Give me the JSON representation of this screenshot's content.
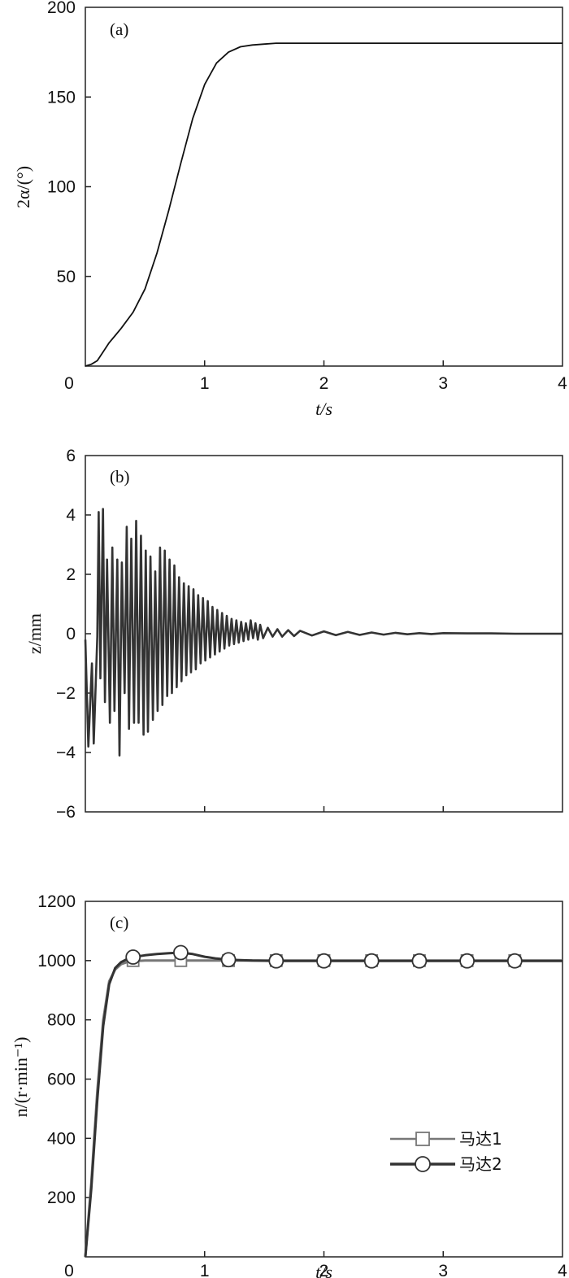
{
  "chart_data": [
    {
      "type": "line",
      "panel": "(a)",
      "ylabel": "2α/(°)",
      "xlabel": "t/s",
      "xlim": [
        0,
        4
      ],
      "ylim": [
        0,
        200
      ],
      "xticks": [
        "0",
        "1",
        "2",
        "3",
        "4"
      ],
      "yticks": [
        "50",
        "100",
        "150",
        "200"
      ],
      "series": [
        {
          "x": [
            0,
            0.05,
            0.1,
            0.15,
            0.2,
            0.25,
            0.3,
            0.4,
            0.5,
            0.6,
            0.7,
            0.8,
            0.9,
            1.0,
            1.1,
            1.2,
            1.3,
            1.4,
            1.5,
            1.6,
            1.8,
            2.0,
            2.5,
            3.0,
            3.5,
            4.0
          ],
          "y": [
            0,
            1,
            3,
            8,
            13,
            17,
            21,
            30,
            43,
            63,
            87,
            113,
            138,
            157,
            169,
            175,
            178,
            179,
            179.5,
            180,
            180,
            180,
            180,
            180,
            180,
            180
          ]
        }
      ]
    },
    {
      "type": "line",
      "panel": "(b)",
      "ylabel": "z/mm",
      "xlim": [
        0,
        4
      ],
      "ylim": [
        -6,
        6
      ],
      "yticks": [
        "−6",
        "−4",
        "−2",
        "0",
        "2",
        "4",
        "6"
      ],
      "series": [
        {
          "x": [
            0,
            0.025,
            0.055,
            0.07,
            0.1,
            0.112,
            0.126,
            0.148,
            0.164,
            0.182,
            0.206,
            0.226,
            0.244,
            0.268,
            0.286,
            0.306,
            0.329,
            0.347,
            0.366,
            0.385,
            0.408,
            0.426,
            0.446,
            0.466,
            0.488,
            0.506,
            0.525,
            0.546,
            0.566,
            0.586,
            0.606,
            0.626,
            0.646,
            0.666,
            0.686,
            0.706,
            0.726,
            0.746,
            0.766,
            0.786,
            0.806,
            0.826,
            0.846,
            0.866,
            0.886,
            0.906,
            0.926,
            0.946,
            0.966,
            0.986,
            1.006,
            1.026,
            1.046,
            1.066,
            1.086,
            1.106,
            1.126,
            1.146,
            1.166,
            1.186,
            1.206,
            1.226,
            1.246,
            1.266,
            1.286,
            1.306,
            1.326,
            1.346,
            1.366,
            1.386,
            1.406,
            1.426,
            1.446,
            1.466,
            1.49,
            1.53,
            1.57,
            1.61,
            1.65,
            1.7,
            1.75,
            1.8,
            1.9,
            2.0,
            2.1,
            2.2,
            2.3,
            2.4,
            2.5,
            2.6,
            2.7,
            2.8,
            2.9,
            3.0,
            3.2,
            3.4,
            3.6,
            3.8,
            4.0
          ],
          "y": [
            -0.2,
            -3.8,
            -1.0,
            -3.7,
            -0.1,
            4.1,
            -1.5,
            4.2,
            -2.3,
            2.5,
            -3.0,
            2.9,
            -2.6,
            2.5,
            -4.1,
            2.4,
            -2.0,
            3.6,
            -3.2,
            3.2,
            -3.0,
            3.8,
            -3.0,
            3.3,
            -3.4,
            2.8,
            -3.3,
            2.6,
            -2.9,
            2.1,
            -2.6,
            2.9,
            -2.4,
            2.8,
            -2.1,
            2.5,
            -2.0,
            2.3,
            -1.8,
            1.9,
            -1.6,
            1.7,
            -1.4,
            1.6,
            -1.3,
            1.5,
            -1.2,
            1.3,
            -1.0,
            1.2,
            -0.9,
            1.1,
            -0.8,
            0.9,
            -0.7,
            0.8,
            -0.6,
            0.7,
            -0.5,
            0.6,
            -0.4,
            0.5,
            -0.35,
            0.45,
            -0.3,
            0.4,
            -0.25,
            0.35,
            -0.2,
            0.45,
            -0.15,
            0.35,
            -0.2,
            0.3,
            -0.15,
            0.2,
            -0.1,
            0.15,
            -0.1,
            0.12,
            -0.08,
            0.1,
            -0.06,
            0.08,
            -0.05,
            0.06,
            -0.04,
            0.04,
            -0.03,
            0.03,
            -0.02,
            0.02,
            -0.01,
            0.02,
            0.01,
            0.01,
            0,
            0,
            0
          ]
        }
      ]
    },
    {
      "type": "line",
      "panel": "(c)",
      "ylabel": "n/(r·min⁻¹)",
      "xlabel": "t/s",
      "xlim": [
        0,
        4
      ],
      "ylim": [
        0,
        1200
      ],
      "xticks": [
        "0",
        "1",
        "2",
        "3",
        "4"
      ],
      "yticks": [
        "200",
        "400",
        "600",
        "800",
        "1000",
        "1200"
      ],
      "legend": "bottom-right",
      "series": [
        {
          "name": "马达1",
          "marker": "square",
          "color": "#777777",
          "x": [
            0,
            0.05,
            0.1,
            0.15,
            0.2,
            0.25,
            0.3,
            0.35,
            0.4,
            0.5,
            0.6,
            0.8,
            1.0,
            1.2,
            1.6,
            2.0,
            2.4,
            2.8,
            3.2,
            3.6,
            4.0
          ],
          "y": [
            0,
            250,
            560,
            800,
            930,
            970,
            988,
            995,
            998,
            1000,
            1000,
            1000,
            1000,
            1000,
            1000,
            1000,
            1000,
            1000,
            1000,
            1000,
            1000
          ],
          "marker_x": [
            0.4,
            0.8,
            1.2,
            1.6,
            2.0,
            2.4,
            2.8,
            3.2,
            3.6
          ],
          "marker_y": [
            1000,
            1000,
            1000,
            1000,
            1000,
            1000,
            1000,
            1000,
            1000
          ]
        },
        {
          "name": "马达2",
          "marker": "circle",
          "color": "#333333",
          "x": [
            0,
            0.05,
            0.1,
            0.15,
            0.2,
            0.25,
            0.3,
            0.35,
            0.4,
            0.5,
            0.6,
            0.7,
            0.8,
            0.9,
            1.0,
            1.1,
            1.2,
            1.4,
            1.6,
            2.0,
            2.4,
            2.8,
            3.2,
            3.6,
            4.0
          ],
          "y": [
            0,
            230,
            530,
            780,
            920,
            975,
            995,
            1005,
            1012,
            1018,
            1022,
            1025,
            1027,
            1022,
            1013,
            1007,
            1003,
            1000,
            999,
            999,
            999,
            999,
            999,
            999,
            999
          ],
          "marker_x": [
            0.4,
            0.8,
            1.2,
            1.6,
            2.0,
            2.4,
            2.8,
            3.2,
            3.6
          ],
          "marker_y": [
            1012,
            1027,
            1003,
            999,
            999,
            999,
            999,
            999,
            999
          ]
        }
      ]
    }
  ]
}
